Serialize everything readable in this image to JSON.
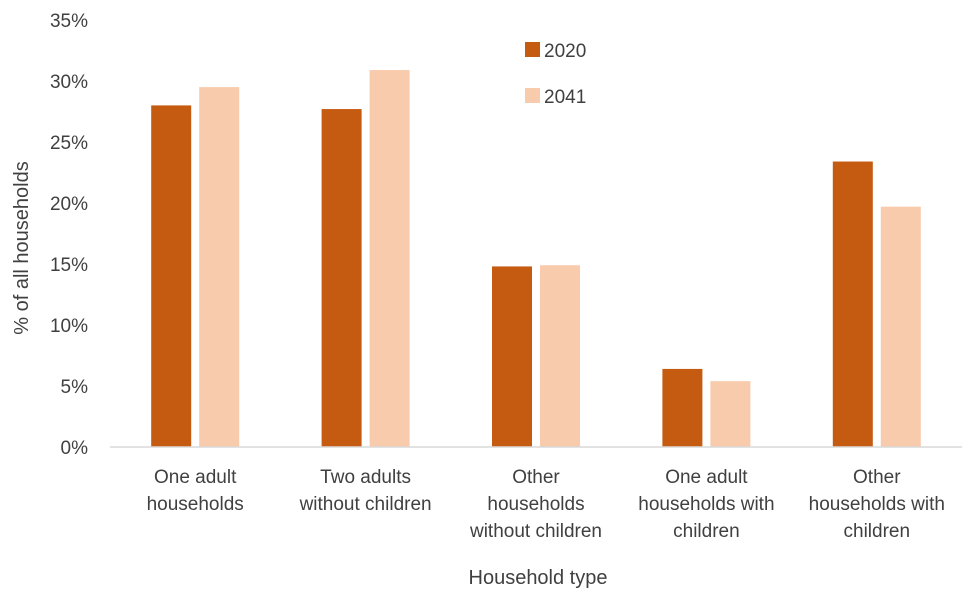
{
  "chart_data": {
    "type": "bar",
    "title": "",
    "xlabel": "Household type",
    "ylabel": "% of all households",
    "ylim": [
      0,
      35
    ],
    "yticks": [
      "0%",
      "5%",
      "10%",
      "15%",
      "20%",
      "25%",
      "30%",
      "35%"
    ],
    "grid": false,
    "legend_position": "top-center",
    "categories": [
      [
        "One adult",
        "households"
      ],
      [
        "Two adults",
        "without children"
      ],
      [
        "Other",
        "households",
        "without children"
      ],
      [
        "One adult",
        "households with",
        "children"
      ],
      [
        "Other",
        "households with",
        "children"
      ]
    ],
    "series": [
      {
        "name": "2020",
        "color": "#c55a11",
        "values": [
          28.0,
          27.7,
          14.8,
          6.4,
          23.4
        ]
      },
      {
        "name": "2041",
        "color": "#f8cbad",
        "values": [
          29.5,
          30.9,
          14.9,
          5.4,
          19.7
        ]
      }
    ]
  }
}
